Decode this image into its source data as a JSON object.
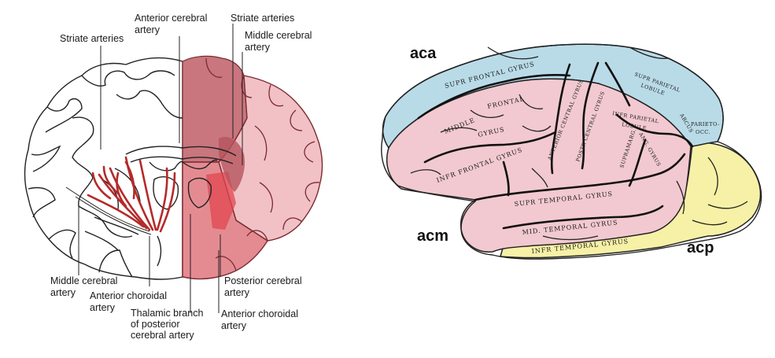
{
  "left_diagram": {
    "labels": {
      "striate_left": "Striate arteries",
      "anterior_cerebral": [
        "Anterior cerebral",
        "artery"
      ],
      "striate_right": "Striate arteries",
      "middle_cerebral_right": [
        "Middle cerebral",
        "artery"
      ],
      "middle_cerebral_left": [
        "Middle cerebral",
        "artery"
      ],
      "anterior_choroidal_left": [
        "Anterior choroidal",
        "artery"
      ],
      "thalamic_branch": [
        "Thalamic branch",
        "of posterior",
        "cerebral artery"
      ],
      "posterior_cerebral": [
        "Posterior cerebral",
        "artery"
      ],
      "anterior_choroidal_right": [
        "Anterior choroidal",
        "artery"
      ]
    },
    "colors": {
      "artery_red": "#b52a2a",
      "aca_territory": "#c9767e",
      "mca_territory": "#f1c1c6",
      "pca_territory": "#e27f86"
    }
  },
  "right_diagram": {
    "territories": {
      "aca": "aca",
      "acm": "acm",
      "acp": "acp"
    },
    "gyri": {
      "supr_frontal": "SUPR FRONTAL  GYRUS",
      "middle_frontal": [
        "MIDDLE",
        "FRONTAL",
        "GYRUS"
      ],
      "infr_frontal": "INFR FRONTAL  GYRUS",
      "anterior_central": "ANTERIOR CENTRAL GYRUS",
      "posterior_central": "POSTR CENTRAL GYRUS",
      "supr_parietal": [
        "SUPR PARIETAL",
        "LOBULE"
      ],
      "infr_parietal": [
        "INFR PARIETAL",
        "LOBULE"
      ],
      "supramarg": "SUPRAMARG.",
      "ang_gyrus": "ANG. GYRUS",
      "arcus": "ARCUS",
      "parieto_occ": [
        "PARIETO-",
        "OCC."
      ],
      "supr_temporal": "SUPR TEMPORAL  GYRUS",
      "mid_temporal": "MID. TEMPORAL  GYRUS",
      "infr_temporal": "INFR TEMPORAL  GYRUS"
    },
    "colors": {
      "aca": "#b9dbe8",
      "mca": "#f2c9d0",
      "pca": "#f6f1a6"
    }
  }
}
